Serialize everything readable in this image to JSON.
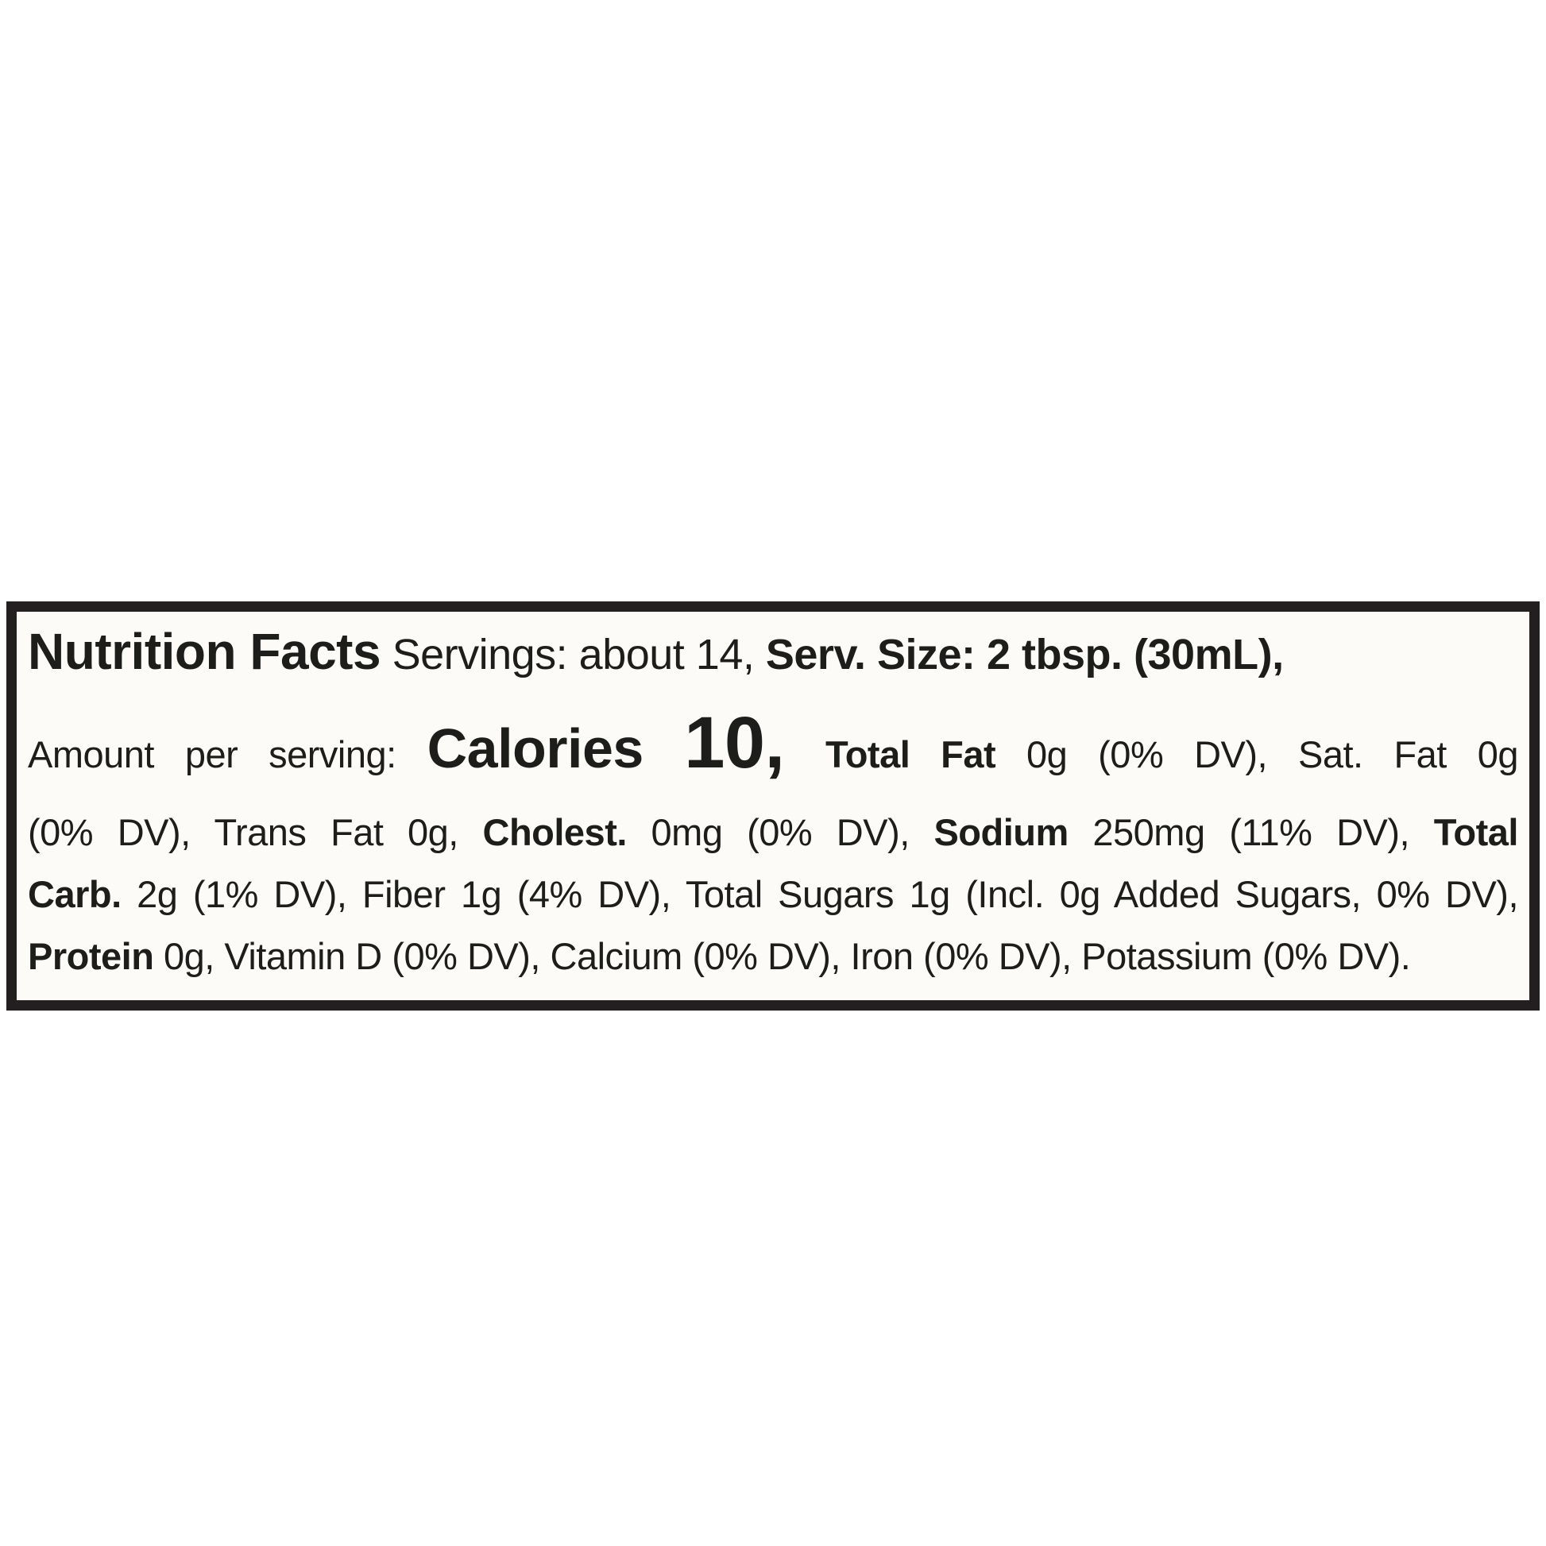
{
  "label": {
    "border_color": "#231f20",
    "background_color": "#fcfbf8",
    "text_color": "#1d1d1b",
    "line1": {
      "title": "Nutrition Facts",
      "servings": " Servings: about 14, ",
      "serving_size": "Serv. Size: 2 tbsp. (30mL),"
    },
    "line2": {
      "amount_label": "Amount per serving: ",
      "calories_label": "Calories",
      "calories_value": " 10, ",
      "total_fat_label": "Total Fat",
      "total_fat_value": " 0g (0% DV), Sat. Fat 0g"
    },
    "line3": {
      "sat_fat_dv_and_trans_fat": "(0% DV), Trans Fat 0g, ",
      "cholesterol_label": "Cholest.",
      "cholesterol_value": " 0mg (0% DV), ",
      "sodium_label": "Sodium",
      "sodium_value": " 250mg (11% DV), ",
      "total_carb_label_part1": "Total"
    },
    "line4": {
      "total_carb_label_part2": "Carb.",
      "carb_fiber_sugars_value": " 2g (1% DV), Fiber 1g (4% DV), Total Sugars 1g (Incl. 0g Added Sugars, 0% DV),"
    },
    "line5": {
      "protein_label": "Protein",
      "protein_vitamins_minerals_value": " 0g, Vitamin D (0% DV), Calcium (0% DV), Iron (0% DV), Potassium (0% DV)."
    }
  }
}
